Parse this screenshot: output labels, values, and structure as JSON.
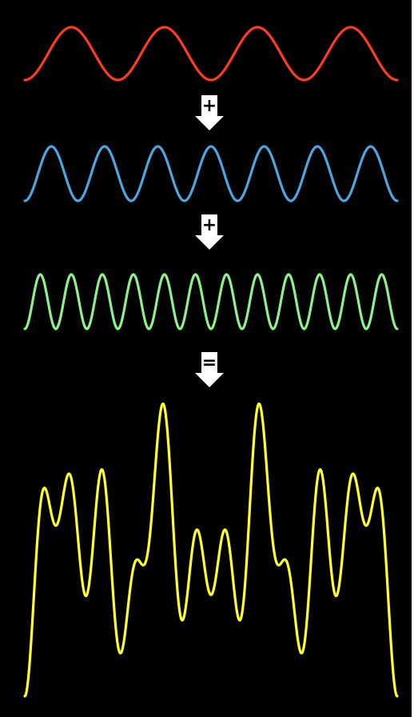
{
  "diagram": {
    "background_color": "#000000",
    "border_color": "#ffffff",
    "operators": [
      {
        "symbol": "+",
        "color": "#ffffff",
        "text_color": "#000000"
      },
      {
        "symbol": "+",
        "color": "#ffffff",
        "text_color": "#000000"
      },
      {
        "symbol": "=",
        "color": "#ffffff",
        "text_color": "#000000"
      }
    ],
    "waves": [
      {
        "id": "wave-1",
        "color": "#ff3b1f",
        "cycles": 4,
        "phase": 0
      },
      {
        "id": "wave-2",
        "color": "#4ba6e0",
        "cycles": 7,
        "phase": 0
      },
      {
        "id": "wave-3",
        "color": "#8ef089",
        "cycles": 12,
        "phase": 0
      }
    ],
    "sum_wave": {
      "id": "sum",
      "color": "#ffff2a",
      "components": [
        "wave-1",
        "wave-2",
        "wave-3"
      ]
    }
  }
}
